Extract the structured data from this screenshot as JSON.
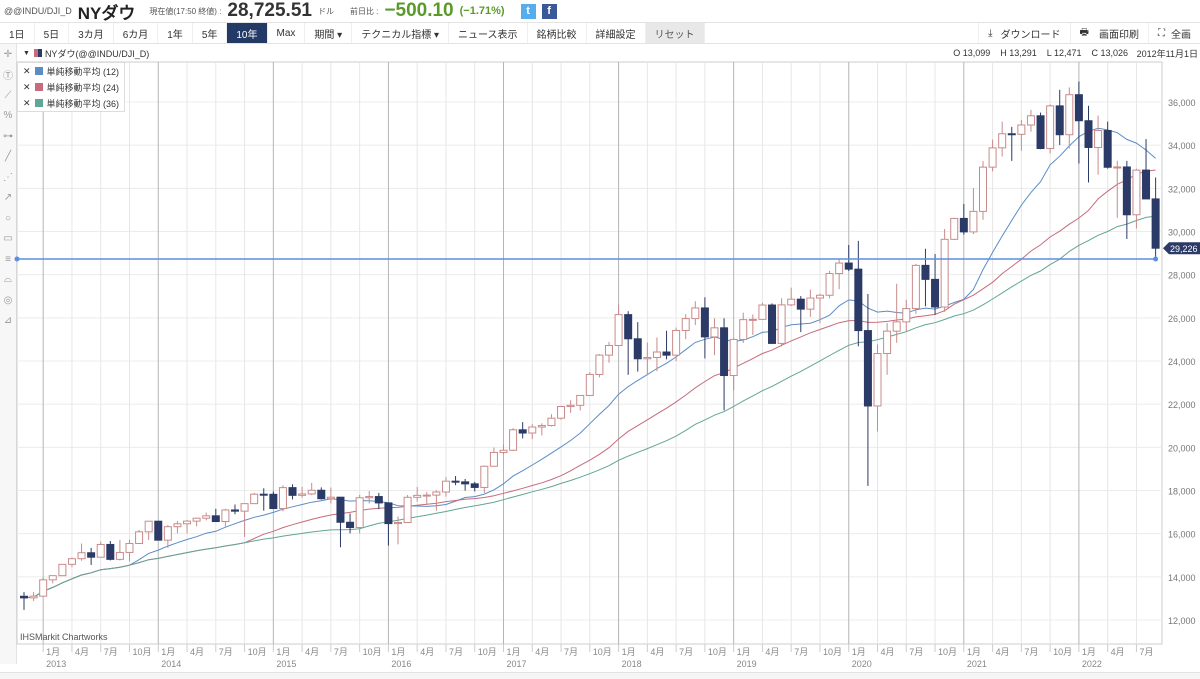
{
  "header": {
    "code": "@@INDU/DJI_D",
    "name": "NYダウ",
    "price_label": "現在値(17:50 終値) :",
    "price": "28,725.51",
    "unit": "ドル",
    "change_label": "前日比 :",
    "change": "−500.10",
    "change_pct": "(−1.71%)",
    "twitter": "t",
    "facebook": "f"
  },
  "toolbar": {
    "ranges": [
      "1日",
      "5日",
      "3カ月",
      "6カ月",
      "1年",
      "5年",
      "10年",
      "Max"
    ],
    "active_range": "10年",
    "period": "期間 ▾",
    "technical": "テクニカル指標 ▾",
    "news": "ニュース表示",
    "compare": "銘柄比較",
    "settings": "詳細設定",
    "reset": "リセット",
    "download": "ダウンロード",
    "print": "画面印刷",
    "fullscreen": "全画"
  },
  "legend": {
    "series_label": "NYダウ(@@INDU/DJI_D)",
    "open": "O 13,099",
    "high": "H 13,291",
    "low": "L 12,471",
    "close": "C 13,026",
    "date": "2012年11月1日",
    "indicators": [
      {
        "label": "単純移動平均 (12)",
        "color": "#5b8cc4"
      },
      {
        "label": "単純移動平均 (24)",
        "color": "#c66b7b"
      },
      {
        "label": "単純移動平均 (36)",
        "color": "#62a594"
      }
    ]
  },
  "colors": {
    "bull": "#c98a8a",
    "bear": "#2b3a66",
    "hline": "#5b8fe0",
    "badge": "#2b3a66"
  },
  "watermark": "IHSMarkit Chartworks",
  "chart_data": {
    "type": "candlestick",
    "interval": "monthly",
    "start": "2012-11",
    "ylim": [
      11000,
      37000
    ],
    "yticks": [
      12000,
      14000,
      16000,
      18000,
      20000,
      22000,
      24000,
      26000,
      28000,
      30000,
      32000,
      34000,
      36000
    ],
    "ytick_labels": [
      "12,000",
      "14,000",
      "16,000",
      "18,000",
      "20,000",
      "22,000",
      "24,000",
      "26,000",
      "28,000",
      "30,000",
      "32,000",
      "34,000",
      "36,000"
    ],
    "last_close_label": "29,226",
    "last_close": 29226,
    "current_price_line": 28725.51,
    "month_labels": [
      "1月",
      "4月",
      "7月",
      "10月"
    ],
    "years": [
      "2013",
      "2014",
      "2015",
      "2016",
      "2017",
      "2018",
      "2019",
      "2020",
      "2021",
      "2022"
    ],
    "sma_periods": [
      12,
      24,
      36
    ],
    "ohlc": [
      [
        13099,
        13291,
        12471,
        13026
      ],
      [
        13026,
        13290,
        12884,
        13104
      ],
      [
        13104,
        13969,
        13104,
        13861
      ],
      [
        13861,
        14054,
        13701,
        14054
      ],
      [
        14054,
        14585,
        14054,
        14579
      ],
      [
        14579,
        14888,
        14444,
        14840
      ],
      [
        14840,
        15542,
        14746,
        15116
      ],
      [
        15116,
        15340,
        14551,
        14910
      ],
      [
        14910,
        15634,
        14910,
        15500
      ],
      [
        15500,
        15658,
        14760,
        14810
      ],
      [
        14810,
        15710,
        14760,
        15130
      ],
      [
        15130,
        15721,
        14719,
        15546
      ],
      [
        15546,
        16174,
        15546,
        16086
      ],
      [
        16086,
        16588,
        15703,
        16577
      ],
      [
        16577,
        16588,
        15699,
        15699
      ],
      [
        15699,
        16398,
        15340,
        16322
      ],
      [
        16322,
        16589,
        16016,
        16458
      ],
      [
        16458,
        16632,
        16015,
        16581
      ],
      [
        16581,
        16736,
        16334,
        16717
      ],
      [
        16717,
        16978,
        16617,
        16827
      ],
      [
        16827,
        17152,
        16563,
        16563
      ],
      [
        16563,
        17153,
        16334,
        17098
      ],
      [
        17098,
        17350,
        16901,
        17043
      ],
      [
        17043,
        17395,
        15855,
        17391
      ],
      [
        17391,
        17895,
        17391,
        17828
      ],
      [
        17828,
        18103,
        17067,
        17823
      ],
      [
        17823,
        17951,
        17136,
        17165
      ],
      [
        17165,
        18244,
        17037,
        18133
      ],
      [
        18133,
        18289,
        17585,
        17776
      ],
      [
        17776,
        18175,
        17667,
        17841
      ],
      [
        17841,
        18351,
        17785,
        18011
      ],
      [
        18011,
        18144,
        17576,
        17620
      ],
      [
        17620,
        18137,
        17399,
        17690
      ],
      [
        17690,
        17690,
        15370,
        16528
      ],
      [
        16528,
        16933,
        16013,
        16285
      ],
      [
        16285,
        17799,
        16013,
        17664
      ],
      [
        17664,
        17978,
        17399,
        17720
      ],
      [
        17720,
        17888,
        17139,
        17425
      ],
      [
        17425,
        17425,
        15451,
        16466
      ],
      [
        16466,
        16795,
        15503,
        16517
      ],
      [
        16517,
        17790,
        16545,
        17685
      ],
      [
        17685,
        18167,
        17484,
        17774
      ],
      [
        17774,
        17934,
        17331,
        17787
      ],
      [
        17787,
        18016,
        17063,
        17930
      ],
      [
        17930,
        18622,
        17713,
        18432
      ],
      [
        18432,
        18668,
        18247,
        18401
      ],
      [
        18401,
        18534,
        17992,
        18308
      ],
      [
        18308,
        18399,
        17959,
        18142
      ],
      [
        18142,
        19152,
        17884,
        19124
      ],
      [
        19124,
        19988,
        19124,
        19763
      ],
      [
        19763,
        20125,
        19677,
        19864
      ],
      [
        19864,
        20892,
        19831,
        20812
      ],
      [
        20812,
        21169,
        20412,
        20663
      ],
      [
        20663,
        21071,
        20379,
        20941
      ],
      [
        20941,
        21113,
        20553,
        21009
      ],
      [
        21009,
        21535,
        20967,
        21350
      ],
      [
        21350,
        21929,
        21279,
        21891
      ],
      [
        21891,
        22179,
        21600,
        21948
      ],
      [
        21948,
        22420,
        21709,
        22405
      ],
      [
        22405,
        23485,
        22416,
        23377
      ],
      [
        23377,
        24327,
        23242,
        24272
      ],
      [
        24272,
        24876,
        23921,
        24719
      ],
      [
        24719,
        26617,
        24741,
        26149
      ],
      [
        26149,
        26307,
        23360,
        25029
      ],
      [
        25029,
        25800,
        23509,
        24103
      ],
      [
        24103,
        24858,
        23345,
        24163
      ],
      [
        24163,
        25087,
        23531,
        24416
      ],
      [
        24416,
        25402,
        24078,
        24271
      ],
      [
        24271,
        25552,
        23998,
        25415
      ],
      [
        25415,
        26167,
        25010,
        25965
      ],
      [
        25965,
        26770,
        25665,
        26458
      ],
      [
        26458,
        26952,
        24122,
        25116
      ],
      [
        25116,
        25980,
        24268,
        25538
      ],
      [
        25538,
        25980,
        21713,
        23327
      ],
      [
        23327,
        25057,
        22638,
        24999
      ],
      [
        24999,
        26241,
        24833,
        25916
      ],
      [
        25916,
        26155,
        25208,
        25929
      ],
      [
        25929,
        26696,
        25978,
        26593
      ],
      [
        26593,
        26669,
        24801,
        24815
      ],
      [
        24815,
        26907,
        24680,
        26600
      ],
      [
        26600,
        27398,
        26546,
        26864
      ],
      [
        26864,
        27008,
        25339,
        26403
      ],
      [
        26403,
        27306,
        26051,
        26917
      ],
      [
        26917,
        27122,
        25743,
        27046
      ],
      [
        27046,
        28175,
        26906,
        28051
      ],
      [
        28051,
        28701,
        27325,
        28538
      ],
      [
        28538,
        29374,
        28169,
        28256
      ],
      [
        28256,
        29568,
        24681,
        25409
      ],
      [
        25409,
        27102,
        18214,
        21917
      ],
      [
        21917,
        24765,
        20735,
        24346
      ],
      [
        24346,
        25759,
        23361,
        25383
      ],
      [
        25383,
        27580,
        24843,
        25813
      ],
      [
        25813,
        26838,
        25391,
        26428
      ],
      [
        26428,
        28502,
        26184,
        28430
      ],
      [
        28430,
        29199,
        26537,
        27782
      ],
      [
        27782,
        28958,
        26143,
        26502
      ],
      [
        26502,
        30116,
        26277,
        29638
      ],
      [
        29638,
        30637,
        29602,
        30606
      ],
      [
        30606,
        31272,
        29856,
        29983
      ],
      [
        29983,
        32010,
        29880,
        30932
      ],
      [
        30932,
        33259,
        30547,
        32982
      ],
      [
        32982,
        34257,
        32787,
        33875
      ],
      [
        33875,
        35091,
        33474,
        34529
      ],
      [
        34529,
        34849,
        33272,
        34503
      ],
      [
        34503,
        35171,
        33741,
        34935
      ],
      [
        34935,
        35631,
        34623,
        35361
      ],
      [
        35361,
        35510,
        33814,
        33844
      ],
      [
        33844,
        35893,
        33613,
        35820
      ],
      [
        35820,
        36566,
        34006,
        34484
      ],
      [
        34484,
        36679,
        33846,
        36338
      ],
      [
        36338,
        36952,
        33150,
        35132
      ],
      [
        35132,
        35825,
        32273,
        33893
      ],
      [
        33893,
        35372,
        32632,
        34678
      ],
      [
        34678,
        35092,
        32913,
        32977
      ],
      [
        32977,
        33273,
        30635,
        32990
      ],
      [
        32990,
        33272,
        29653,
        30775
      ],
      [
        30775,
        32910,
        30143,
        32845
      ],
      [
        32845,
        34281,
        31509,
        31510
      ],
      [
        31510,
        32504,
        28715,
        29226
      ]
    ]
  }
}
